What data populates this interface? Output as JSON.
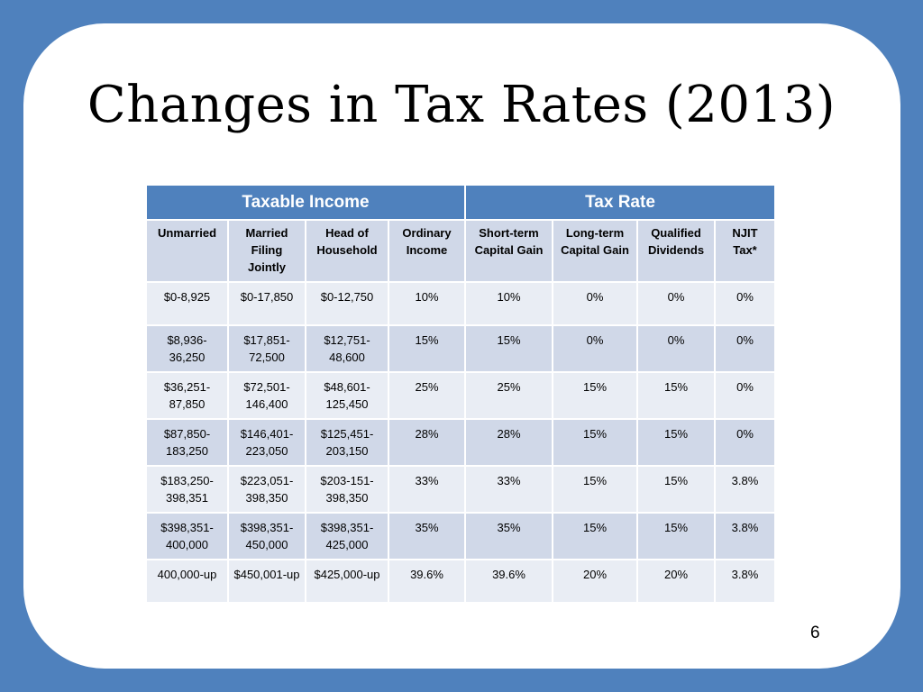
{
  "slide": {
    "title": "Changes in Tax Rates (2013)",
    "page_number": "6"
  },
  "table": {
    "groups": [
      "Taxable Income",
      "Tax Rate"
    ],
    "columns": [
      "Unmarried",
      "Married Filing Jointly",
      "Head of Household",
      "Ordinary Income",
      "Short-term Capital Gain",
      "Long-term Capital Gain",
      "Qualified Dividends",
      "NJIT Tax*"
    ],
    "rows": [
      [
        "$0-8,925",
        "$0-17,850",
        "$0-12,750",
        "10%",
        "10%",
        "0%",
        "0%",
        "0%"
      ],
      [
        "$8,936-36,250",
        "$17,851-72,500",
        "$12,751-48,600",
        "15%",
        "15%",
        "0%",
        "0%",
        "0%"
      ],
      [
        "$36,251-87,850",
        "$72,501-146,400",
        "$48,601-125,450",
        "25%",
        "25%",
        "15%",
        "15%",
        "0%"
      ],
      [
        "$87,850-183,250",
        "$146,401-223,050",
        "$125,451-203,150",
        "28%",
        "28%",
        "15%",
        "15%",
        "0%"
      ],
      [
        "$183,250-398,351",
        "$223,051-398,350",
        "$203-151-398,350",
        "33%",
        "33%",
        "15%",
        "15%",
        "3.8%"
      ],
      [
        "$398,351-400,000",
        "$398,351-450,000",
        "$398,351-425,000",
        "35%",
        "35%",
        "15%",
        "15%",
        "3.8%"
      ],
      [
        "400,000-up",
        "$450,001-up",
        "$425,000-up",
        "39.6%",
        "39.6%",
        "20%",
        "20%",
        "3.8%"
      ]
    ]
  },
  "colors": {
    "frame": "#4f81bd",
    "header_fill": "#4f81bd",
    "row_light": "#e9edf4",
    "row_dark": "#d0d8e8"
  }
}
